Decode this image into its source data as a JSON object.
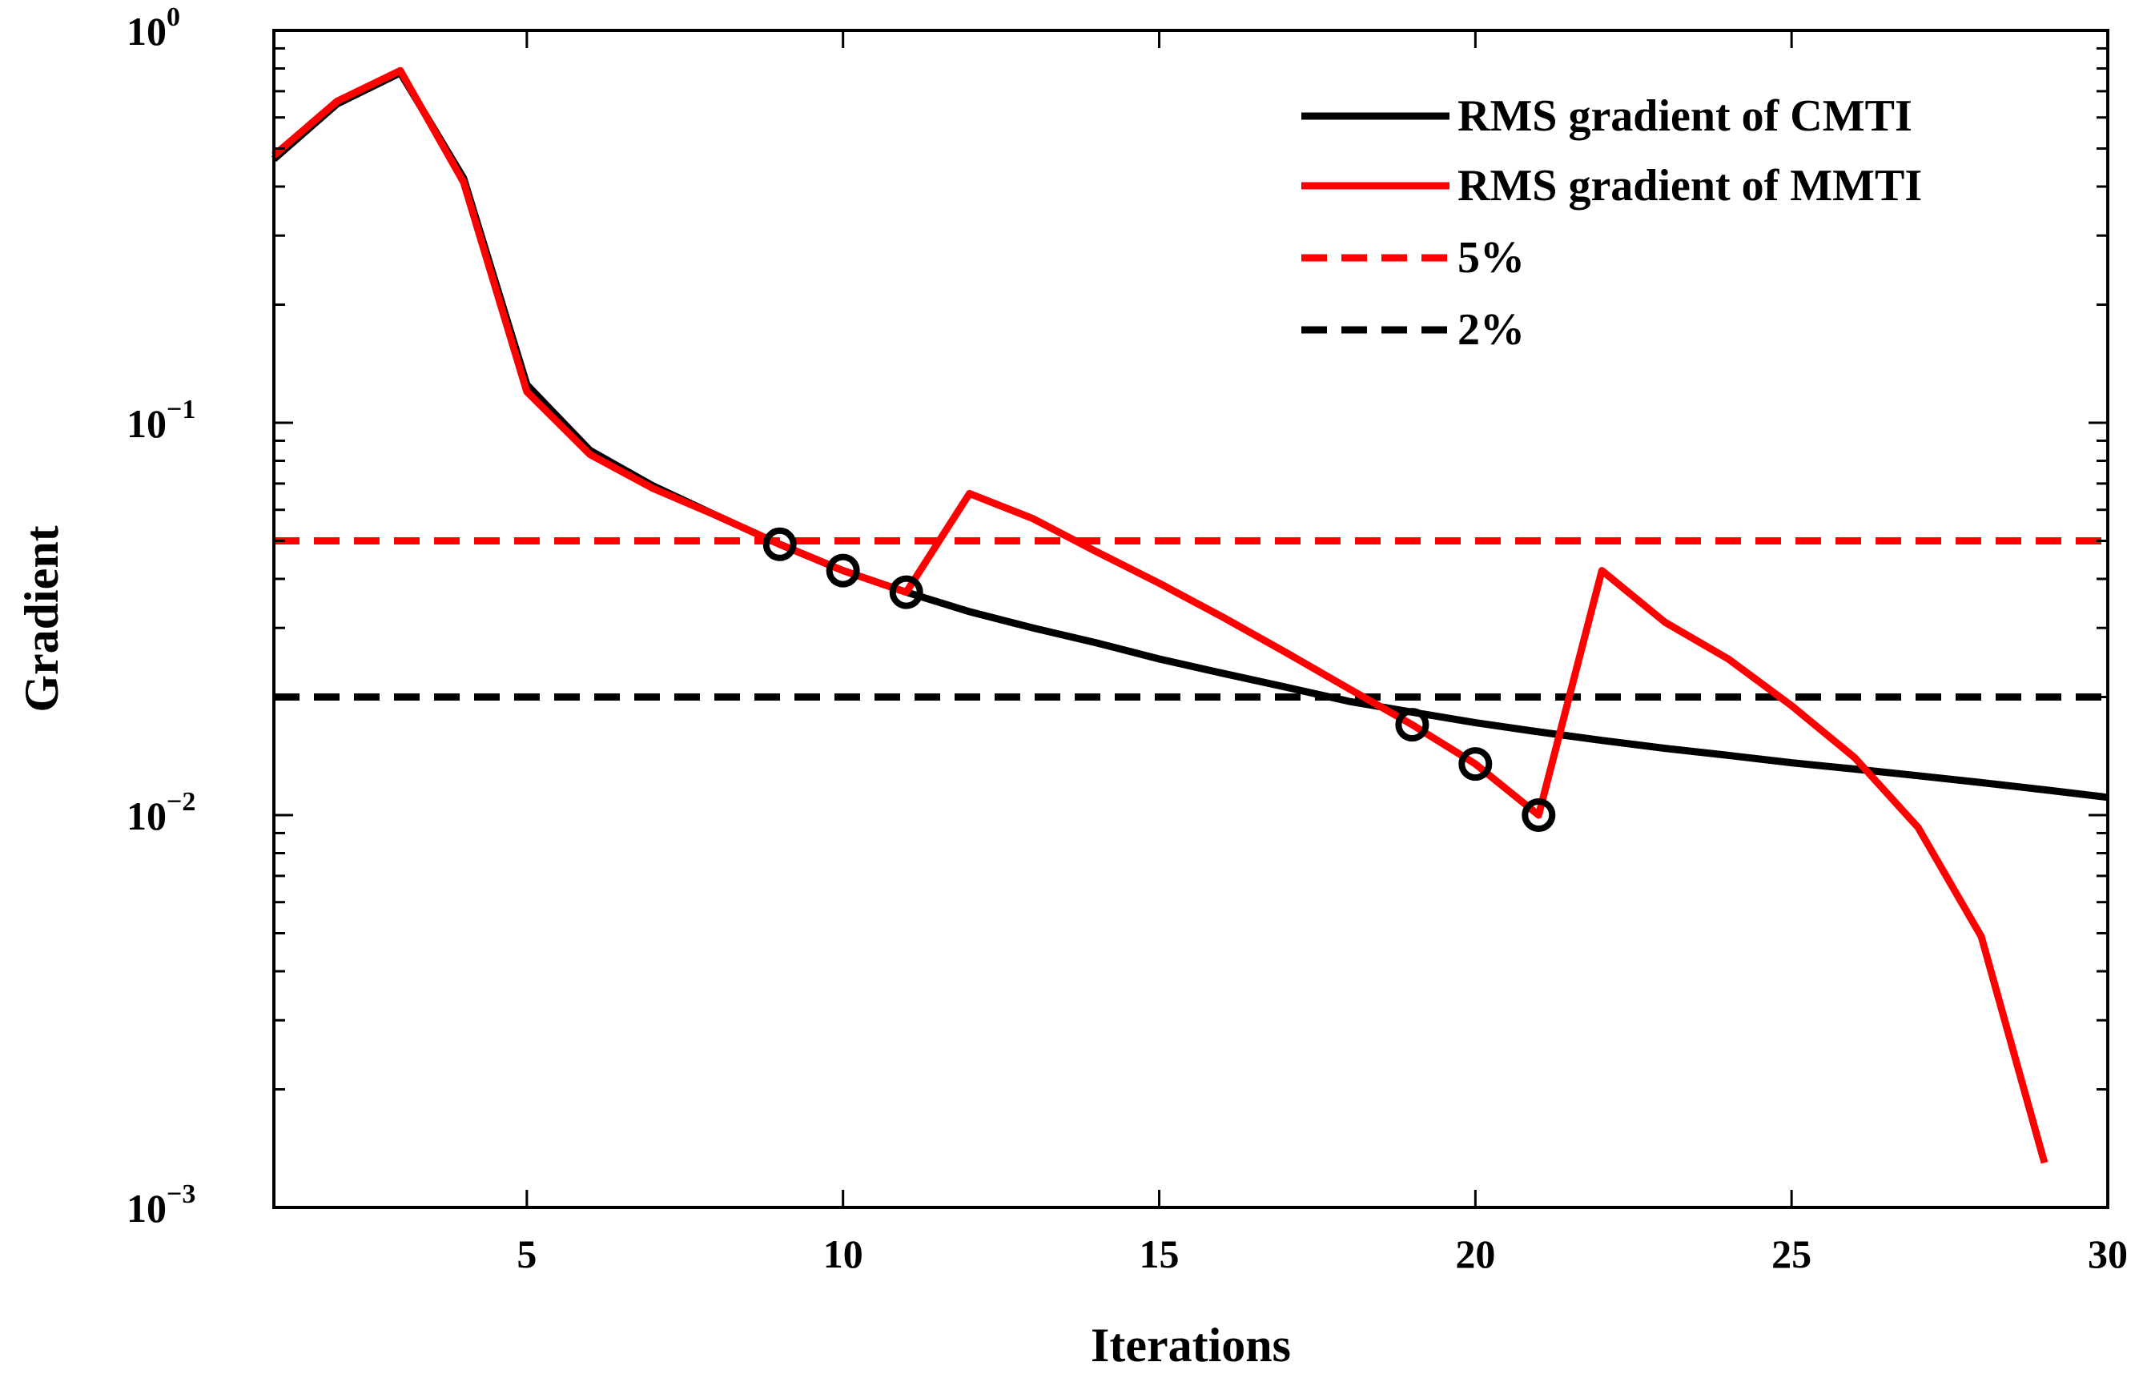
{
  "chart_data": {
    "type": "line",
    "xlabel": "Iterations",
    "ylabel": "Gradient",
    "xlim": [
      1,
      30
    ],
    "ylim": [
      0.001,
      1
    ],
    "yscale": "log",
    "grid": false,
    "legend_position": "top-right",
    "xticks": [
      5,
      10,
      15,
      20,
      25,
      30
    ],
    "x_tick_labels": [
      "5",
      "10",
      "15",
      "20",
      "25",
      "30"
    ],
    "yticks": [
      {
        "value": 1,
        "base": "10",
        "exponent": "0"
      },
      {
        "value": 0.1,
        "base": "10",
        "exponent": "−1"
      },
      {
        "value": 0.01,
        "base": "10",
        "exponent": "−2"
      },
      {
        "value": 0.001,
        "base": "10",
        "exponent": "−3"
      }
    ],
    "series": [
      {
        "name": "RMS gradient of CMTI",
        "color": "#000000",
        "style": "solid",
        "x": [
          1,
          2,
          3,
          4,
          5,
          6,
          7,
          8,
          9,
          10,
          11,
          12,
          13,
          14,
          15,
          16,
          17,
          18,
          19,
          20,
          21,
          22,
          23,
          24,
          25,
          26,
          27,
          28,
          29,
          30
        ],
        "values": [
          0.47,
          0.65,
          0.78,
          0.42,
          0.125,
          0.085,
          0.069,
          0.058,
          0.049,
          0.042,
          0.037,
          0.033,
          0.03,
          0.0275,
          0.025,
          0.023,
          0.0212,
          0.0195,
          0.0183,
          0.0172,
          0.0163,
          0.0155,
          0.0148,
          0.0142,
          0.0136,
          0.0131,
          0.0126,
          0.0121,
          0.0116,
          0.0111
        ]
      },
      {
        "name": "RMS gradient of MMTI",
        "color": "#ff0000",
        "style": "solid",
        "x": [
          1,
          2,
          3,
          4,
          5,
          6,
          7,
          8,
          9,
          10,
          11,
          12,
          13,
          14,
          15,
          16,
          17,
          18,
          19,
          20,
          21,
          22,
          23,
          24,
          25,
          26,
          27,
          28,
          29
        ],
        "values": [
          0.48,
          0.66,
          0.79,
          0.41,
          0.12,
          0.083,
          0.068,
          0.058,
          0.049,
          0.042,
          0.037,
          0.066,
          0.057,
          0.047,
          0.039,
          0.032,
          0.026,
          0.021,
          0.017,
          0.0135,
          0.01,
          0.042,
          0.031,
          0.025,
          0.019,
          0.014,
          0.0093,
          0.0049,
          0.0013
        ]
      },
      {
        "name": "5%",
        "color": "#ff0000",
        "style": "dashed",
        "x": [
          1,
          30
        ],
        "values": [
          0.05,
          0.05
        ]
      },
      {
        "name": "2%",
        "color": "#000000",
        "style": "dashed",
        "x": [
          1,
          30
        ],
        "values": [
          0.02,
          0.02
        ]
      }
    ],
    "markers": {
      "shape": "circle",
      "color": "#000000",
      "x": [
        9,
        10,
        11,
        19,
        20,
        21
      ],
      "values": [
        0.049,
        0.042,
        0.037,
        0.017,
        0.0135,
        0.01
      ]
    }
  }
}
